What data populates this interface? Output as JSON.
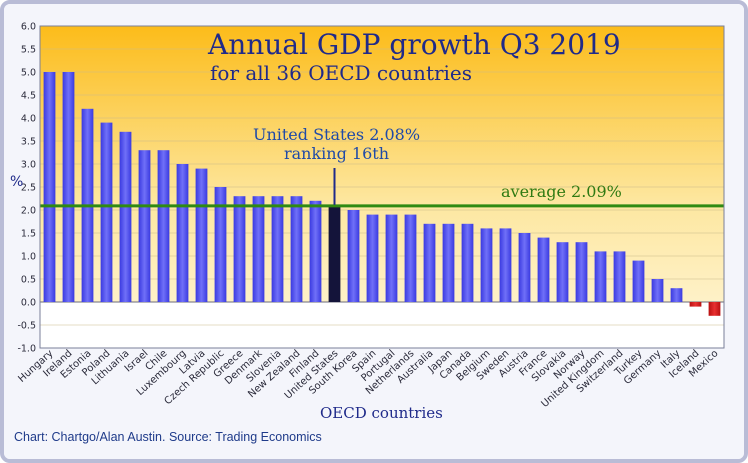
{
  "chart_data": {
    "type": "bar",
    "title": "Annual GDP growth Q3 2019",
    "subtitle": "for all 36 OECD countries",
    "xlabel": "OECD countries",
    "ylabel": "%",
    "ylim": [
      -1.0,
      6.0
    ],
    "yticks": [
      "6.0",
      "5.5",
      "5.0",
      "4.5",
      "4.0",
      "3.5",
      "3.0",
      "2.5",
      "2.0",
      "1.5",
      "1.0",
      "0.5",
      "0.0",
      "-0.5",
      "-1.0"
    ],
    "categories": [
      "Hungary",
      "Ireland",
      "Estonia",
      "Poland",
      "Lithuania",
      "Israel",
      "Chile",
      "Luxembourg",
      "Latvia",
      "Czech Republic",
      "Greece",
      "Denmark",
      "Slovenia",
      "New Zealand",
      "Finland",
      "United States",
      "South Korea",
      "Spain",
      "Portugal",
      "Netherlands",
      "Australia",
      "Japan",
      "Canada",
      "Belgium",
      "Sweden",
      "Austria",
      "France",
      "Slovakia",
      "Norway",
      "United Kingdom",
      "Switzerland",
      "Turkey",
      "Germany",
      "Italy",
      "Iceland",
      "Mexico"
    ],
    "values": [
      5.0,
      5.0,
      4.2,
      3.9,
      3.7,
      3.3,
      3.3,
      3.0,
      2.9,
      2.5,
      2.3,
      2.3,
      2.3,
      2.3,
      2.2,
      2.08,
      2.0,
      1.9,
      1.9,
      1.9,
      1.7,
      1.7,
      1.7,
      1.6,
      1.6,
      1.5,
      1.4,
      1.3,
      1.3,
      1.1,
      1.1,
      0.9,
      0.5,
      0.3,
      -0.1,
      -0.3
    ],
    "highlight": "United States",
    "average": 2.09,
    "annotations": {
      "us_line1": "United States 2.08%",
      "us_line2": "ranking 16th",
      "average": "average 2.09%"
    },
    "grid": true,
    "colors": {
      "bar_positive": "#5c5cf0",
      "bar_highlight": "#14143a",
      "bar_negative": "#d82020",
      "average_line": "#2f8a12",
      "background_top": "#fcbc1a",
      "background_bottom": "#fff6da"
    }
  },
  "source": "Chart: Chartgo/Alan Austin. Source: Trading Economics"
}
